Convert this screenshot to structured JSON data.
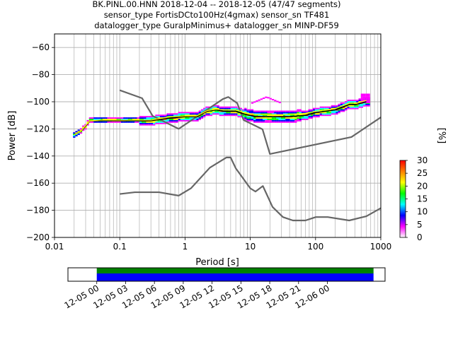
{
  "title_lines": [
    "BK.PINL.00.HNN   2018-12-04 -- 2018-12-05  (47/47 segments)",
    "sensor_type FortisDCto100Hz(4gmax) sensor_sn TF481",
    "datalogger_type GuralpMinimus+ datalogger_sn MINP-DF59"
  ],
  "chart_data": [
    {
      "type": "heatmap",
      "xlabel": "Period [s]",
      "ylabel": "Power [dB]",
      "xscale": "log",
      "xlim": [
        0.01,
        1000
      ],
      "ylim": [
        -200,
        -50
      ],
      "grid": true,
      "x_ticks": [
        {
          "value": 0.01,
          "label": "0.01"
        },
        {
          "value": 0.1,
          "label": "0.1"
        },
        {
          "value": 1,
          "label": "1"
        },
        {
          "value": 10,
          "label": "10"
        },
        {
          "value": 100,
          "label": "100"
        },
        {
          "value": 1000,
          "label": "1000"
        }
      ],
      "y_ticks": [
        {
          "value": -60,
          "label": "−60"
        },
        {
          "value": -80,
          "label": "−80"
        },
        {
          "value": -100,
          "label": "−100"
        },
        {
          "value": -120,
          "label": "−120"
        },
        {
          "value": -140,
          "label": "−140"
        },
        {
          "value": -160,
          "label": "−160"
        },
        {
          "value": -180,
          "label": "−180"
        },
        {
          "value": -200,
          "label": "−200"
        }
      ],
      "series": [
        {
          "role": "high-noise-model",
          "color": "#666666",
          "x": [
            0.1,
            0.22,
            0.32,
            0.8,
            3.8,
            4.6,
            6.3,
            7.9,
            15.4,
            20,
            354.8,
            1000
          ],
          "y": [
            -91.5,
            -97.4,
            -110.5,
            -120,
            -98,
            -96.5,
            -101,
            -113.5,
            -120.3,
            -138.5,
            -126,
            -111.5
          ]
        },
        {
          "role": "low-noise-model",
          "color": "#666666",
          "x": [
            0.1,
            0.17,
            0.4,
            0.8,
            1.24,
            2.4,
            4.3,
            5,
            6,
            10,
            12,
            15.6,
            21.9,
            31.6,
            45,
            70,
            101,
            154,
            328,
            600,
            1000
          ],
          "y": [
            -168,
            -166.7,
            -166.7,
            -169.2,
            -163.7,
            -148.6,
            -141.1,
            -141.1,
            -149.1,
            -163.8,
            -166.2,
            -162.1,
            -177.5,
            -185,
            -187.5,
            -187.5,
            -185,
            -185,
            -187.5,
            -184.4,
            -178.4
          ]
        },
        {
          "role": "psd-mode",
          "color": "#000000",
          "x": [
            0.02,
            0.025,
            0.03,
            0.035,
            0.05,
            0.08,
            0.15,
            0.3,
            0.6,
            1,
            1.5,
            2.2,
            3,
            4,
            6,
            8,
            12,
            20,
            40,
            70,
            100,
            200,
            330,
            420,
            600
          ],
          "y": [
            -124.5,
            -122,
            -118,
            -114,
            -114,
            -114,
            -114,
            -114,
            -112,
            -111,
            -111,
            -107,
            -106,
            -107,
            -107,
            -109,
            -111,
            -111,
            -111,
            -110,
            -108,
            -106,
            -102,
            -102,
            -100
          ]
        },
        {
          "role": "psd-mean",
          "color": "#ffff00",
          "x": [
            0.02,
            0.025,
            0.03,
            0.035,
            0.05,
            0.08,
            0.15,
            0.3,
            0.6,
            1,
            1.5,
            2.2,
            3,
            4,
            6,
            8,
            12,
            20,
            40,
            70,
            100,
            200,
            330,
            420,
            600
          ],
          "y": [
            -124.5,
            -122,
            -117.5,
            -114,
            -113.5,
            -113.5,
            -113.5,
            -113.5,
            -111,
            -110.5,
            -110.5,
            -106.5,
            -105.5,
            -106,
            -106,
            -108,
            -109.5,
            -109.5,
            -109.5,
            -108.5,
            -107,
            -105,
            -101,
            -101,
            -99
          ]
        }
      ],
      "colorbar": {
        "label": "[%]",
        "min": 0,
        "max": 30,
        "ticks": [
          {
            "value": 0,
            "label": "0"
          },
          {
            "value": 5,
            "label": "5"
          },
          {
            "value": 10,
            "label": "10"
          },
          {
            "value": 15,
            "label": "15"
          },
          {
            "value": 20,
            "label": "20"
          },
          {
            "value": 25,
            "label": "25"
          },
          {
            "value": 30,
            "label": "30"
          }
        ],
        "stops": [
          "#ffffff",
          "#ff00ff",
          "#0000ff",
          "#00ffff",
          "#00ff00",
          "#ffff00",
          "#ff8000",
          "#ff0000"
        ]
      }
    },
    {
      "type": "timeline",
      "xlim_hours": [
        -3,
        30
      ],
      "coverage_hours": [
        0,
        28.8
      ],
      "row_colors": [
        "#008000",
        "#0000ff"
      ],
      "x_ticks": [
        {
          "value": 0,
          "label": "12-05 00"
        },
        {
          "value": 3,
          "label": "12-05 03"
        },
        {
          "value": 6,
          "label": "12-05 06"
        },
        {
          "value": 9,
          "label": "12-05 09"
        },
        {
          "value": 12,
          "label": "12-05 12"
        },
        {
          "value": 15,
          "label": "12-05 15"
        },
        {
          "value": 18,
          "label": "12-05 18"
        },
        {
          "value": 21,
          "label": "12-05 21"
        },
        {
          "value": 24,
          "label": "12-06 00"
        }
      ]
    }
  ]
}
